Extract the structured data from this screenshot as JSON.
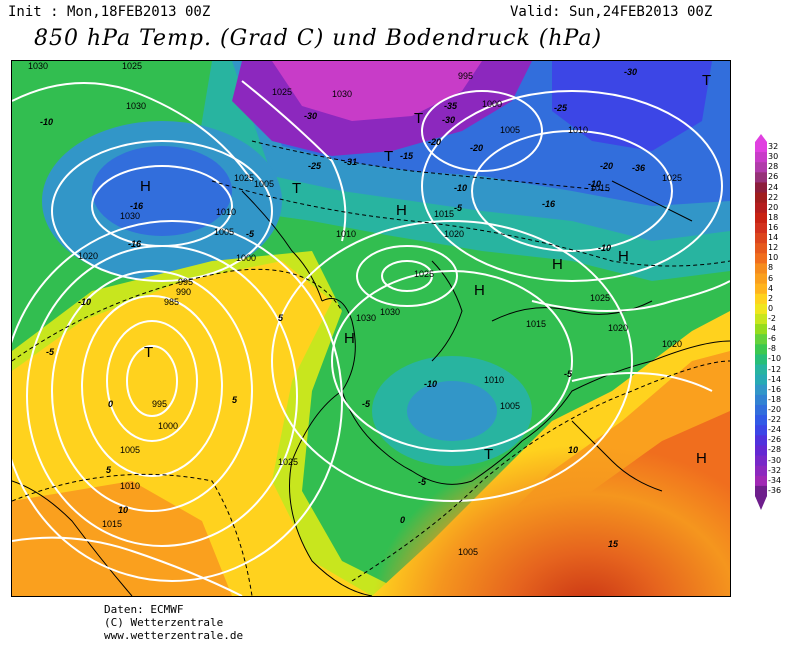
{
  "header": {
    "init": "Init : Mon,18FEB2013 00Z",
    "valid": "Valid: Sun,24FEB2013 00Z",
    "title": "850 hPa Temp. (Grad C) und Bodendruck (hPa)"
  },
  "legend": {
    "labels": [
      "32",
      "30",
      "28",
      "26",
      "24",
      "22",
      "20",
      "18",
      "16",
      "14",
      "12",
      "10",
      "8",
      "6",
      "4",
      "2",
      "0",
      "-2",
      "-4",
      "-6",
      "-8",
      "-10",
      "-12",
      "-14",
      "-16",
      "-18",
      "-20",
      "-22",
      "-24",
      "-26",
      "-28",
      "-30",
      "-32",
      "-34",
      "-36"
    ],
    "colors": [
      "#e040e0",
      "#c83cc8",
      "#b03caa",
      "#963278",
      "#8c1e3c",
      "#a01e1e",
      "#b41e1e",
      "#c82314",
      "#d2321e",
      "#dc461e",
      "#e65a1e",
      "#f06e1e",
      "#f58c1e",
      "#faa01e",
      "#ffb41e",
      "#ffd21e",
      "#f0e61e",
      "#c8e61e",
      "#96dc1e",
      "#64d23c",
      "#3cc850",
      "#28be78",
      "#28b4a0",
      "#28aab4",
      "#3296c8",
      "#3282d2",
      "#326edc",
      "#325ae6",
      "#3c46e6",
      "#5032dc",
      "#6428d2",
      "#7828c8",
      "#8c28be",
      "#a028b4",
      "#6e1e8c"
    ]
  },
  "map": {
    "pressure_labels": [
      {
        "text": "1025"
      },
      {
        "text": "1030"
      },
      {
        "text": "1025"
      },
      {
        "text": "1030"
      },
      {
        "text": "995"
      },
      {
        "text": "1000"
      },
      {
        "text": "1005"
      },
      {
        "text": "1010"
      },
      {
        "text": "1015"
      },
      {
        "text": "1025"
      },
      {
        "text": "1030"
      },
      {
        "text": "1025"
      },
      {
        "text": "1030"
      },
      {
        "text": "1020"
      },
      {
        "text": "1010"
      },
      {
        "text": "1005"
      },
      {
        "text": "1000"
      },
      {
        "text": "995"
      },
      {
        "text": "990"
      },
      {
        "text": "985"
      },
      {
        "text": "995"
      },
      {
        "text": "1000"
      },
      {
        "text": "1005"
      },
      {
        "text": "1010"
      },
      {
        "text": "1015"
      },
      {
        "text": "1025"
      },
      {
        "text": "1030"
      },
      {
        "text": "1030"
      },
      {
        "text": "1020"
      },
      {
        "text": "1025"
      },
      {
        "text": "1010"
      },
      {
        "text": "1015"
      },
      {
        "text": "1025"
      },
      {
        "text": "1015"
      },
      {
        "text": "1010"
      },
      {
        "text": "1005"
      },
      {
        "text": "1020"
      },
      {
        "text": "1020"
      },
      {
        "text": "1005"
      },
      {
        "text": "1005"
      }
    ],
    "temp_labels": [
      {
        "text": "-10"
      },
      {
        "text": "-30"
      },
      {
        "text": "-35"
      },
      {
        "text": "-31"
      },
      {
        "text": "-25"
      },
      {
        "text": "-20"
      },
      {
        "text": "-30"
      },
      {
        "text": "-25"
      },
      {
        "text": "-20"
      },
      {
        "text": "-16"
      },
      {
        "text": "-15"
      },
      {
        "text": "-10"
      },
      {
        "text": "-5"
      },
      {
        "text": "-16"
      },
      {
        "text": "-10"
      },
      {
        "text": "-20"
      },
      {
        "text": "-16"
      },
      {
        "text": "-10"
      },
      {
        "text": "-5"
      },
      {
        "text": "-5"
      },
      {
        "text": "0"
      },
      {
        "text": "5"
      },
      {
        "text": "5"
      },
      {
        "text": "5"
      },
      {
        "text": "10"
      },
      {
        "text": "-5"
      },
      {
        "text": "-10"
      },
      {
        "text": "-5"
      },
      {
        "text": "0"
      },
      {
        "text": "10"
      },
      {
        "text": "15"
      },
      {
        "text": "-30"
      },
      {
        "text": "-36"
      },
      {
        "text": "-5"
      },
      {
        "text": "-10"
      }
    ],
    "centers": [
      {
        "text": "H"
      },
      {
        "text": "T"
      },
      {
        "text": "T"
      },
      {
        "text": "T"
      },
      {
        "text": "H"
      },
      {
        "text": "H"
      },
      {
        "text": "H"
      },
      {
        "text": "H"
      },
      {
        "text": "H"
      },
      {
        "text": "T"
      },
      {
        "text": "T"
      },
      {
        "text": "H"
      },
      {
        "text": "T"
      }
    ]
  },
  "footer": {
    "line1": "Daten: ECMWF",
    "line2": "(C) Wetterzentrale",
    "line3": "www.wetterzentrale.de"
  }
}
